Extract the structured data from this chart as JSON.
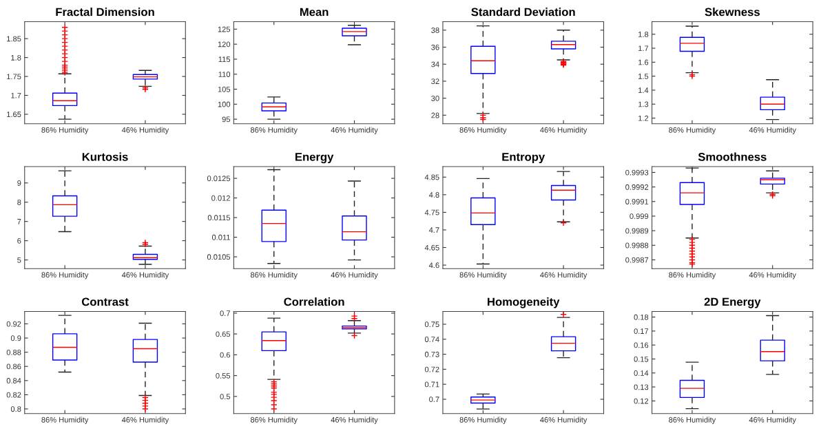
{
  "chart_data": [
    {
      "type": "box",
      "title": "Fractal Dimension",
      "categories": [
        "86% Humidity",
        "46% Humidity"
      ],
      "ylim": [
        1.625,
        1.895
      ],
      "yticks": [
        1.65,
        1.7,
        1.75,
        1.8,
        1.85
      ],
      "marker": "cross",
      "series": [
        {
          "color": "#0000ff",
          "boxes": [
            {
              "low": 1.637,
              "q1": 1.673,
              "median": 1.686,
              "q3": 1.706,
              "high": 1.757,
              "outliers": [
                1.76,
                1.765,
                1.77,
                1.775,
                1.78,
                1.79,
                1.8,
                1.81,
                1.82,
                1.83,
                1.84,
                1.85,
                1.86,
                1.87,
                1.88
              ]
            },
            {
              "low": 1.724,
              "q1": 1.743,
              "median": 1.749,
              "q3": 1.755,
              "high": 1.766,
              "outliers": [
                1.72,
                1.716
              ]
            }
          ]
        }
      ]
    },
    {
      "type": "box",
      "title": "Mean",
      "categories": [
        "86% Humidity",
        "46% Humidity"
      ],
      "ylim": [
        93.5,
        127.5
      ],
      "yticks": [
        95,
        100,
        105,
        110,
        115,
        120,
        125
      ],
      "marker": "cross",
      "series": [
        {
          "color": "#0000ff",
          "boxes": [
            {
              "low": 95,
              "q1": 97.8,
              "median": 99.1,
              "q3": 100.4,
              "high": 102.4
            },
            {
              "low": 119.8,
              "q1": 122.8,
              "median": 124.2,
              "q3": 125.3,
              "high": 126.3
            }
          ]
        }
      ]
    },
    {
      "type": "box",
      "title": "Standard Deviation",
      "categories": [
        "86% Humidity",
        "46% Humidity"
      ],
      "ylim": [
        27,
        39
      ],
      "yticks": [
        28,
        30,
        32,
        34,
        36,
        38
      ],
      "marker": "cross",
      "series": [
        {
          "color": "#0000ff",
          "boxes": [
            {
              "low": 28.2,
              "q1": 32.9,
              "median": 34.4,
              "q3": 36.1,
              "high": 38.5,
              "outliers": [
                28.0,
                27.7,
                27.5
              ]
            },
            {
              "low": 34.5,
              "q1": 35.8,
              "median": 36.3,
              "q3": 36.7,
              "high": 38.0,
              "outliers": [
                34.3,
                34.2,
                34.1,
                34.0,
                33.9
              ]
            }
          ]
        }
      ]
    },
    {
      "type": "box",
      "title": "Skewness",
      "categories": [
        "86% Humidity",
        "46% Humidity"
      ],
      "ylim": [
        1.16,
        1.89
      ],
      "yticks": [
        1.2,
        1.3,
        1.4,
        1.5,
        1.6,
        1.7,
        1.8
      ],
      "marker": "cross",
      "series": [
        {
          "color": "#0000ff",
          "boxes": [
            {
              "low": 1.525,
              "q1": 1.678,
              "median": 1.735,
              "q3": 1.778,
              "high": 1.858,
              "outliers": [
                1.51,
                1.5
              ]
            },
            {
              "low": 1.19,
              "q1": 1.26,
              "median": 1.3,
              "q3": 1.35,
              "high": 1.475
            }
          ]
        }
      ]
    },
    {
      "type": "box",
      "title": "Kurtosis",
      "categories": [
        "86% Humidity",
        "46% Humidity"
      ],
      "ylim": [
        4.55,
        9.85
      ],
      "yticks": [
        5,
        6,
        7,
        8,
        9
      ],
      "marker": "cross",
      "series": [
        {
          "color": "#0000ff",
          "boxes": [
            {
              "low": 6.47,
              "q1": 7.27,
              "median": 7.87,
              "q3": 8.33,
              "high": 9.63
            },
            {
              "low": 4.77,
              "q1": 5.03,
              "median": 5.12,
              "q3": 5.29,
              "high": 5.72,
              "outliers": [
                5.81,
                5.9
              ]
            }
          ]
        }
      ]
    },
    {
      "type": "box",
      "title": "Energy",
      "categories": [
        "86% Humidity",
        "46% Humidity"
      ],
      "ylim": [
        0.0102,
        0.0128
      ],
      "yticks": [
        0.0105,
        0.011,
        0.0115,
        0.012,
        0.0125
      ],
      "marker": "cross",
      "series": [
        {
          "color": "#0000ff",
          "boxes": [
            {
              "low": 0.01033,
              "q1": 0.01089,
              "median": 0.01135,
              "q3": 0.01169,
              "high": 0.01272
            },
            {
              "low": 0.01042,
              "q1": 0.01093,
              "median": 0.01114,
              "q3": 0.01154,
              "high": 0.01243
            }
          ]
        }
      ]
    },
    {
      "type": "box",
      "title": "Entropy",
      "categories": [
        "86% Humidity",
        "46% Humidity"
      ],
      "ylim": [
        4.59,
        4.88
      ],
      "yticks": [
        4.6,
        4.65,
        4.7,
        4.75,
        4.8,
        4.85
      ],
      "marker": "cross",
      "series": [
        {
          "color": "#0000ff",
          "boxes": [
            {
              "low": 4.603,
              "q1": 4.715,
              "median": 4.748,
              "q3": 4.791,
              "high": 4.846
            },
            {
              "low": 4.723,
              "q1": 4.785,
              "median": 4.813,
              "q3": 4.826,
              "high": 4.866,
              "outliers": [
                4.72
              ]
            }
          ]
        }
      ]
    },
    {
      "type": "box",
      "title": "Smoothness",
      "categories": [
        "86% Humidity",
        "46% Humidity"
      ],
      "ylim": [
        0.99864,
        0.99934
      ],
      "yticks": [
        0.9987,
        0.9988,
        0.9989,
        0.999,
        0.9991,
        0.9992,
        0.9993
      ],
      "marker": "cross",
      "series": [
        {
          "color": "#0000ff",
          "boxes": [
            {
              "low": 0.99885,
              "q1": 0.99908,
              "median": 0.99916,
              "q3": 0.99923,
              "high": 0.99933,
              "outliers": [
                0.99884,
                0.99882,
                0.9988,
                0.99878,
                0.99876,
                0.99874,
                0.99872,
                0.9987,
                0.99868,
                0.99867
              ]
            },
            {
              "low": 0.99916,
              "q1": 0.99922,
              "median": 0.99925,
              "q3": 0.99926,
              "high": 0.99931,
              "outliers": [
                0.99915,
                0.99914
              ]
            }
          ]
        }
      ]
    },
    {
      "type": "box",
      "title": "Contrast",
      "categories": [
        "86% Humidity",
        "46% Humidity"
      ],
      "ylim": [
        0.7935,
        0.9375
      ],
      "yticks": [
        0.8,
        0.82,
        0.84,
        0.86,
        0.88,
        0.9,
        0.92
      ],
      "marker": "cross",
      "series": [
        {
          "color": "#0000ff",
          "boxes": [
            {
              "low": 0.852,
              "q1": 0.869,
              "median": 0.887,
              "q3": 0.906,
              "high": 0.932
            },
            {
              "low": 0.819,
              "q1": 0.866,
              "median": 0.885,
              "q3": 0.898,
              "high": 0.921,
              "outliers": [
                0.816,
                0.812,
                0.808,
                0.804,
                0.8
              ]
            }
          ]
        }
      ]
    },
    {
      "type": "box",
      "title": "Correlation",
      "categories": [
        "86% Humidity",
        "46% Humidity"
      ],
      "ylim": [
        0.459,
        0.704
      ],
      "yticks": [
        0.5,
        0.55,
        0.6,
        0.65,
        0.7
      ],
      "marker": "cross",
      "series": [
        {
          "color": "#0000ff",
          "boxes": [
            {
              "low": 0.541,
              "q1": 0.61,
              "median": 0.634,
              "q3": 0.655,
              "high": 0.688,
              "outliers": [
                0.535,
                0.53,
                0.525,
                0.52,
                0.51,
                0.505,
                0.498,
                0.49,
                0.48,
                0.47
              ]
            },
            {
              "low": 0.652,
              "q1": 0.662,
              "median": 0.665,
              "q3": 0.669,
              "high": 0.682,
              "outliers": [
                0.687,
                0.693,
                0.646
              ]
            }
          ]
        }
      ]
    },
    {
      "type": "box",
      "title": "Homogeneity",
      "categories": [
        "86% Humidity",
        "46% Humidity"
      ],
      "ylim": [
        0.6905,
        0.7585
      ],
      "yticks": [
        0.7,
        0.71,
        0.72,
        0.73,
        0.74,
        0.75
      ],
      "marker": "cross",
      "series": [
        {
          "color": "#0000ff",
          "boxes": [
            {
              "low": 0.6935,
              "q1": 0.6975,
              "median": 0.6995,
              "q3": 0.7015,
              "high": 0.7035
            },
            {
              "low": 0.7277,
              "q1": 0.7323,
              "median": 0.7373,
              "q3": 0.7417,
              "high": 0.7545,
              "outliers": [
                0.7565
              ]
            }
          ]
        }
      ]
    },
    {
      "type": "box",
      "title": "2D Energy",
      "categories": [
        "86% Humidity",
        "46% Humidity"
      ],
      "ylim": [
        0.111,
        0.184
      ],
      "yticks": [
        0.12,
        0.13,
        0.14,
        0.15,
        0.16,
        0.17,
        0.18
      ],
      "marker": "cross",
      "series": [
        {
          "color": "#0000ff",
          "boxes": [
            {
              "low": 0.1145,
              "q1": 0.1225,
              "median": 0.129,
              "q3": 0.1347,
              "high": 0.1477
            },
            {
              "low": 0.139,
              "q1": 0.1487,
              "median": 0.1553,
              "q3": 0.1635,
              "high": 0.181
            }
          ]
        }
      ]
    }
  ]
}
